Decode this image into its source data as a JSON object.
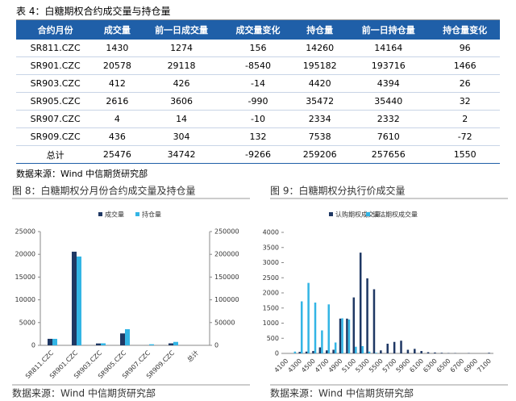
{
  "table": {
    "title": "表 4：白糖期权合约成交量与持仓量",
    "header": [
      "合约月份",
      "成交量",
      "前一日成交量",
      "成交量变化",
      "持仓量",
      "前一日持仓量",
      "持仓量变化"
    ],
    "rows": [
      [
        "SR811.CZC",
        1430,
        1274,
        156,
        14260,
        14164,
        96
      ],
      [
        "SR901.CZC",
        20578,
        29118,
        -8540,
        195182,
        193716,
        1466
      ],
      [
        "SR903.CZC",
        412,
        426,
        -14,
        4420,
        4394,
        26
      ],
      [
        "SR905.CZC",
        2616,
        3606,
        -990,
        35472,
        35440,
        32
      ],
      [
        "SR907.CZC",
        4,
        14,
        -10,
        2334,
        2332,
        2
      ],
      [
        "SR909.CZC",
        436,
        304,
        132,
        7538,
        7610,
        -72
      ],
      [
        "总计",
        25476,
        34742,
        -9266,
        259206,
        257656,
        1550
      ]
    ],
    "source": "数据来源：Wind  中信期货研究部"
  },
  "chart_data": [
    {
      "type": "bar",
      "title": "图 8：白糖期权分月份合约成交量及持仓量",
      "source": "数据来源：Wind  中信期货研究部",
      "categories": [
        "SR811.CZC",
        "SR901.CZC",
        "SR903.CZC",
        "SR905.CZC",
        "SR907.CZC",
        "SR909.CZC",
        "总计"
      ],
      "series": [
        {
          "name": "成交量",
          "color": "#1f3864",
          "values": [
            1430,
            20578,
            412,
            2616,
            4,
            436,
            null
          ]
        },
        {
          "name": "持仓量",
          "color": "#33b5e5",
          "axis": "y2",
          "values": [
            14260,
            195182,
            4420,
            35472,
            2334,
            7538,
            null
          ]
        }
      ],
      "ylim": [
        0,
        25000
      ],
      "yticks": [
        0,
        5000,
        10000,
        15000,
        20000,
        25000
      ],
      "y2lim": [
        0,
        250000
      ],
      "y2ticks": [
        0,
        50000,
        100000,
        150000,
        200000,
        250000
      ],
      "legend": "top"
    },
    {
      "type": "bar",
      "title": "图 9：白糖期权分执行价成交量",
      "source": "数据来源：Wind  中信期货研究部",
      "categories": [
        "4100",
        null,
        "4300",
        null,
        "4500",
        null,
        "4700",
        null,
        "4900",
        null,
        "5100",
        null,
        "5300",
        null,
        "5500",
        null,
        "5700",
        null,
        "5900",
        null,
        "6100",
        null,
        "6300",
        null,
        "6500",
        null,
        "6700",
        null,
        "6900",
        null,
        "7100"
      ],
      "series": [
        {
          "name": "认购期权成交量",
          "color": "#1f3864",
          "values": [
            0,
            0,
            50,
            60,
            80,
            200,
            100,
            120,
            1150,
            1150,
            1850,
            3330,
            2480,
            2120,
            100,
            320,
            380,
            420,
            120,
            150,
            80,
            40,
            30,
            20,
            10,
            10,
            0,
            10,
            0,
            0,
            20
          ]
        },
        {
          "name": "认沽期权成交量",
          "color": "#33b5e5",
          "values": [
            0,
            60,
            1720,
            2330,
            1680,
            760,
            1620,
            360,
            1160,
            1120,
            220,
            240,
            60,
            20,
            0,
            0,
            0,
            0,
            0,
            0,
            0,
            0,
            0,
            0,
            0,
            0,
            0,
            0,
            0,
            0,
            0
          ]
        }
      ],
      "ylim": [
        0,
        4000
      ],
      "yticks": [
        0,
        500,
        1000,
        1500,
        2000,
        2500,
        3000,
        3500,
        4000
      ],
      "legend": "top"
    }
  ]
}
